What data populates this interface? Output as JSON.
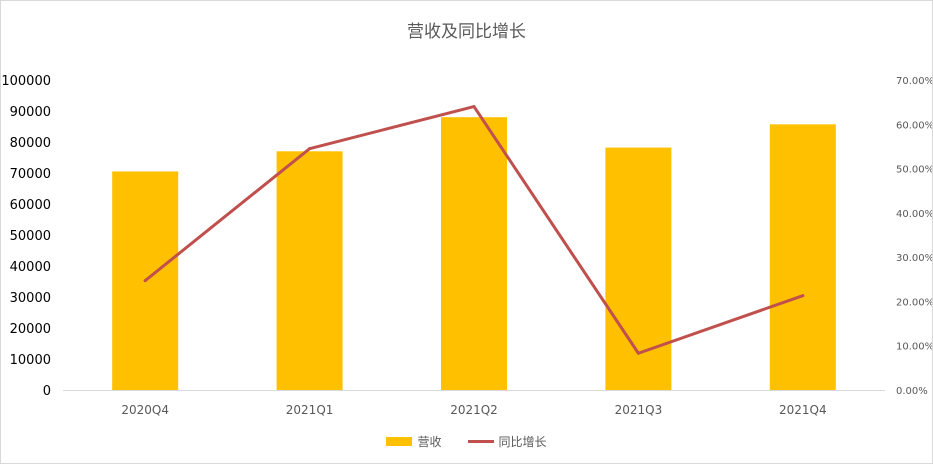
{
  "chart_data": {
    "type": "bar",
    "title": "营收及同比增长",
    "categories": [
      "2020Q4",
      "2021Q1",
      "2021Q2",
      "2021Q3",
      "2021Q4"
    ],
    "series": [
      {
        "name": "营收",
        "type": "bar",
        "axis": "left",
        "color": "#ffc000",
        "values": [
          70500,
          77000,
          88000,
          78200,
          85700
        ]
      },
      {
        "name": "同比增长",
        "type": "line",
        "axis": "right",
        "color": "#c0504d",
        "values": [
          0.247,
          0.545,
          0.64,
          0.083,
          0.213
        ]
      }
    ],
    "y_left": {
      "ylim": [
        0,
        100000
      ],
      "ticks": [
        "0",
        "10000",
        "20000",
        "30000",
        "40000",
        "50000",
        "60000",
        "70000",
        "80000",
        "90000",
        "100000"
      ]
    },
    "y_right": {
      "ylim": [
        0,
        0.7
      ],
      "ticks": [
        "0.00%",
        "10.00%",
        "20.00%",
        "30.00%",
        "40.00%",
        "50.00%",
        "60.00%",
        "70.00%"
      ]
    },
    "grid": false,
    "legend_position": "bottom"
  }
}
